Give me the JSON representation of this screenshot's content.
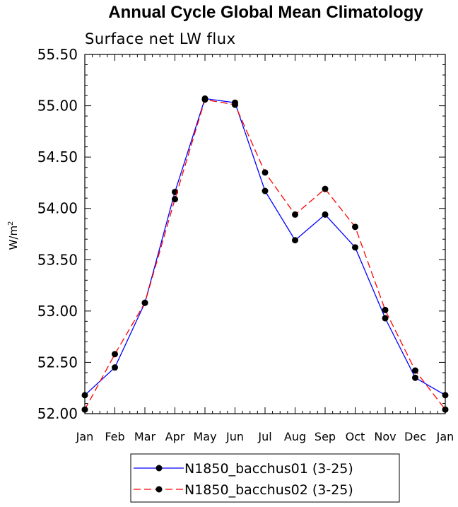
{
  "chart_data": {
    "type": "line",
    "title": "Annual Cycle Global Mean Climatology",
    "subtitle": "Surface net LW flux",
    "xlabel": "",
    "ylabel": "W/m",
    "ylabel_superscript": "2",
    "categories": [
      "Jan",
      "Feb",
      "Mar",
      "Apr",
      "May",
      "Jun",
      "Jul",
      "Aug",
      "Sep",
      "Oct",
      "Nov",
      "Dec",
      "Jan"
    ],
    "ylim": [
      52.0,
      55.5
    ],
    "yticks": [
      "52.00",
      "52.50",
      "53.00",
      "53.50",
      "54.00",
      "54.50",
      "55.00",
      "55.50"
    ],
    "legend_position": "bottom",
    "series": [
      {
        "name": "N1850_bacchus01 (3-25)",
        "color": "#0000ff",
        "dash": "solid",
        "marker": "filled-circle",
        "values": [
          52.18,
          52.45,
          53.08,
          54.16,
          55.07,
          55.03,
          54.17,
          53.69,
          53.94,
          53.62,
          52.93,
          52.35,
          52.18
        ]
      },
      {
        "name": "N1850_bacchus02 (3-25)",
        "color": "#ff0000",
        "dash": "dashed",
        "marker": "filled-circle",
        "values": [
          52.04,
          52.58,
          53.08,
          54.09,
          55.06,
          55.01,
          54.35,
          53.94,
          54.19,
          53.82,
          53.01,
          52.42,
          52.04
        ]
      }
    ]
  }
}
